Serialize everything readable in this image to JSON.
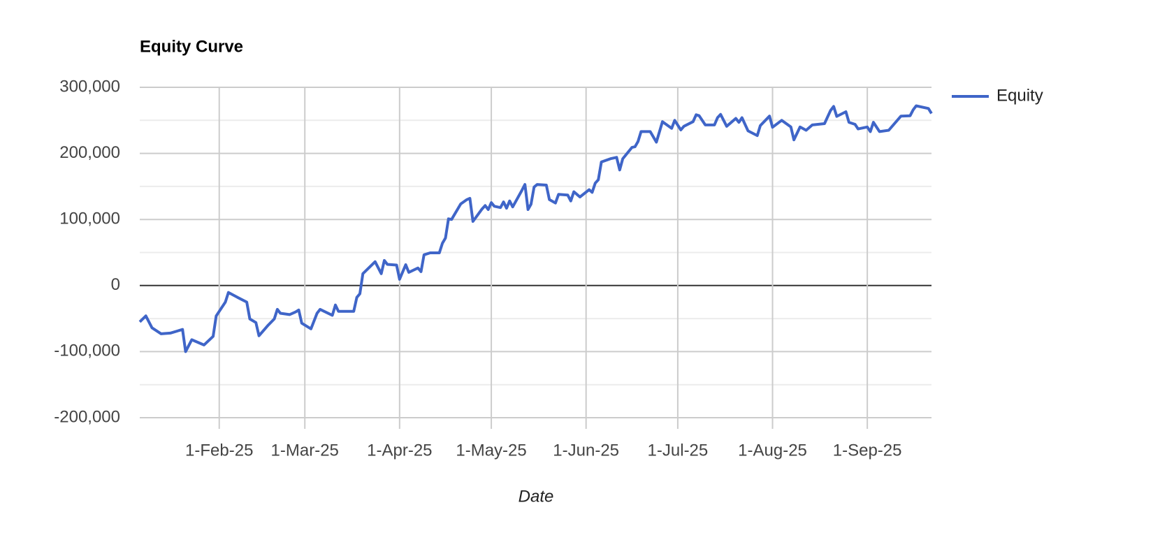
{
  "chart_data": {
    "type": "line",
    "title": "Equity Curve",
    "x_label": "Date",
    "x": [
      "2025-01-06",
      "2025-01-08",
      "2025-01-10",
      "2025-01-13",
      "2025-01-16",
      "2025-01-20",
      "2025-01-21",
      "2025-01-23",
      "2025-01-27",
      "2025-01-30",
      "2025-01-31",
      "2025-02-03",
      "2025-02-04",
      "2025-02-07",
      "2025-02-10",
      "2025-02-11",
      "2025-02-13",
      "2025-02-14",
      "2025-02-17",
      "2025-02-19",
      "2025-02-20",
      "2025-02-21",
      "2025-02-24",
      "2025-02-26",
      "2025-02-27",
      "2025-02-28",
      "2025-03-03",
      "2025-03-05",
      "2025-03-06",
      "2025-03-10",
      "2025-03-11",
      "2025-03-12",
      "2025-03-17",
      "2025-03-18",
      "2025-03-19",
      "2025-03-20",
      "2025-03-24",
      "2025-03-26",
      "2025-03-27",
      "2025-03-28",
      "2025-03-31",
      "2025-04-01",
      "2025-04-03",
      "2025-04-04",
      "2025-04-07",
      "2025-04-08",
      "2025-04-09",
      "2025-04-11",
      "2025-04-14",
      "2025-04-15",
      "2025-04-16",
      "2025-04-17",
      "2025-04-18",
      "2025-04-21",
      "2025-04-23",
      "2025-04-24",
      "2025-04-25",
      "2025-04-28",
      "2025-04-29",
      "2025-04-30",
      "2025-05-01",
      "2025-05-02",
      "2025-05-04",
      "2025-05-05",
      "2025-05-06",
      "2025-05-07",
      "2025-05-08",
      "2025-05-11",
      "2025-05-12",
      "2025-05-13",
      "2025-05-14",
      "2025-05-15",
      "2025-05-16",
      "2025-05-19",
      "2025-05-20",
      "2025-05-22",
      "2025-05-23",
      "2025-05-26",
      "2025-05-27",
      "2025-05-28",
      "2025-05-29",
      "2025-05-30",
      "2025-06-02",
      "2025-06-03",
      "2025-06-04",
      "2025-06-05",
      "2025-06-06",
      "2025-06-09",
      "2025-06-11",
      "2025-06-12",
      "2025-06-13",
      "2025-06-16",
      "2025-06-17",
      "2025-06-18",
      "2025-06-19",
      "2025-06-22",
      "2025-06-24",
      "2025-06-26",
      "2025-06-29",
      "2025-06-30",
      "2025-07-02",
      "2025-07-03",
      "2025-07-06",
      "2025-07-07",
      "2025-07-08",
      "2025-07-10",
      "2025-07-13",
      "2025-07-14",
      "2025-07-15",
      "2025-07-17",
      "2025-07-20",
      "2025-07-21",
      "2025-07-22",
      "2025-07-24",
      "2025-07-27",
      "2025-07-28",
      "2025-07-31",
      "2025-08-01",
      "2025-08-04",
      "2025-08-07",
      "2025-08-08",
      "2025-08-10",
      "2025-08-12",
      "2025-08-14",
      "2025-08-18",
      "2025-08-20",
      "2025-08-21",
      "2025-08-22",
      "2025-08-25",
      "2025-08-26",
      "2025-08-28",
      "2025-08-29",
      "2025-09-01",
      "2025-09-02",
      "2025-09-03",
      "2025-09-05",
      "2025-09-08",
      "2025-09-12",
      "2025-09-15",
      "2025-09-16",
      "2025-09-17",
      "2025-09-21",
      "2025-09-22"
    ],
    "series": [
      {
        "name": "Equity",
        "color": "#3f65c8",
        "values": [
          -55000,
          -46000,
          -64000,
          -73000,
          -72000,
          -66500,
          -100000,
          -82000,
          -90000,
          -77000,
          -46000,
          -25000,
          -10500,
          -18000,
          -25000,
          -50500,
          -56000,
          -76000,
          -60000,
          -50500,
          -36000,
          -42000,
          -44000,
          -40000,
          -37000,
          -57000,
          -65500,
          -42000,
          -36000,
          -45000,
          -29500,
          -39000,
          -39000,
          -18000,
          -12500,
          18000,
          36000,
          18000,
          38000,
          32000,
          31000,
          9500,
          31500,
          20000,
          26500,
          21000,
          46500,
          49500,
          49500,
          64000,
          72000,
          101000,
          100000,
          123500,
          130000,
          132000,
          97000,
          116000,
          121000,
          115000,
          125500,
          120000,
          118000,
          126500,
          117000,
          128000,
          119000,
          144000,
          153000,
          115000,
          123000,
          149000,
          153000,
          152000,
          130000,
          125000,
          138000,
          137000,
          128000,
          142000,
          138000,
          134000,
          145000,
          141000,
          155000,
          160000,
          187000,
          192000,
          194000,
          175000,
          192000,
          209000,
          210000,
          218000,
          233000,
          233000,
          217000,
          248000,
          238000,
          250000,
          235500,
          241000,
          248000,
          258500,
          257000,
          243000,
          243000,
          254000,
          259000,
          241000,
          253000,
          247000,
          254000,
          234000,
          227000,
          242000,
          256500,
          239500,
          250000,
          240000,
          220500,
          240000,
          235000,
          243000,
          245000,
          265000,
          271000,
          256000,
          263000,
          247000,
          244000,
          237000,
          240000,
          233000,
          247000,
          233000,
          235000,
          256500,
          257000,
          266000,
          272000,
          268000,
          260500
        ]
      }
    ],
    "xlim": [
      "2025-01-06",
      "2025-09-22"
    ],
    "xticks": [
      {
        "value": "2025-02-01",
        "label": "1-Feb-25"
      },
      {
        "value": "2025-03-01",
        "label": "1-Mar-25"
      },
      {
        "value": "2025-04-01",
        "label": "1-Apr-25"
      },
      {
        "value": "2025-05-01",
        "label": "1-May-25"
      },
      {
        "value": "2025-06-01",
        "label": "1-Jun-25"
      },
      {
        "value": "2025-07-01",
        "label": "1-Jul-25"
      },
      {
        "value": "2025-08-01",
        "label": "1-Aug-25"
      },
      {
        "value": "2025-09-01",
        "label": "1-Sep-25"
      }
    ],
    "ylim": [
      -200000,
      300000
    ],
    "yticks": [
      {
        "value": -200000,
        "label": "-200,000"
      },
      {
        "value": -100000,
        "label": "-100,000"
      },
      0,
      {
        "value": 100000,
        "label": "100,000"
      },
      {
        "value": 200000,
        "label": "200,000"
      },
      {
        "value": 300000,
        "label": "300,000"
      }
    ],
    "grid": true,
    "legend": "right"
  }
}
